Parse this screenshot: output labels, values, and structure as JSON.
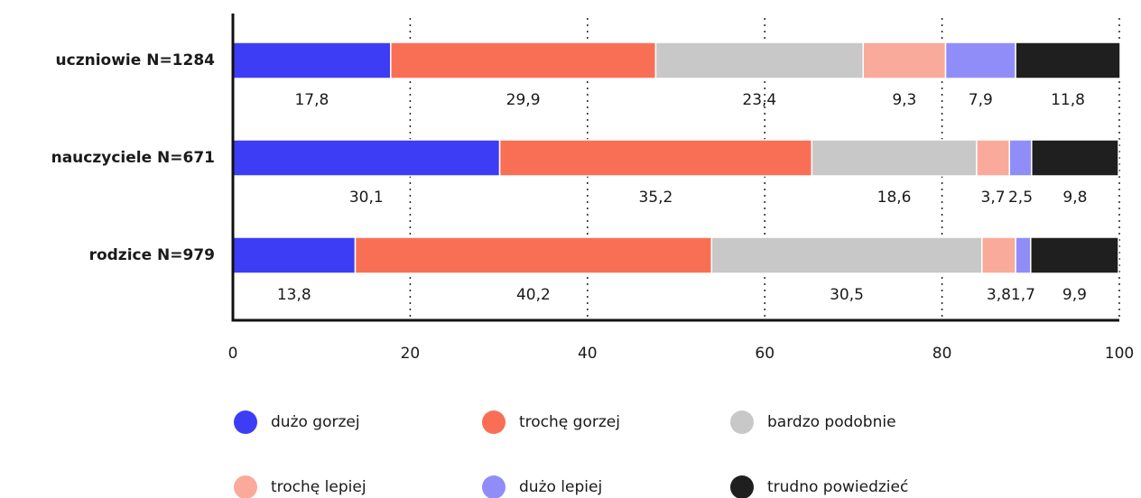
{
  "chart_data": {
    "type": "stacked-bar-horizontal",
    "categories": [
      "uczniowie N=1284",
      "nauczyciele N=671",
      "rodzice N=979"
    ],
    "series": [
      {
        "name": "dużo gorzej",
        "color": "#3d3df5",
        "values": [
          17.8,
          30.1,
          13.8
        ],
        "value_labels": [
          "17,8",
          "30,1",
          "13,8"
        ]
      },
      {
        "name": "trochę gorzej",
        "color": "#f96f56",
        "values": [
          29.9,
          35.2,
          40.2
        ],
        "value_labels": [
          "29,9",
          "35,2",
          "40,2"
        ]
      },
      {
        "name": "bardzo podobnie",
        "color": "#c8c8c8",
        "values": [
          23.4,
          18.6,
          30.5
        ],
        "value_labels": [
          "23,4",
          "18,6",
          "30,5"
        ]
      },
      {
        "name": "trochę lepiej",
        "color": "#f9aa9b",
        "values": [
          9.3,
          3.7,
          3.8
        ],
        "value_labels": [
          "9,3",
          "3,7",
          "3,8"
        ]
      },
      {
        "name": "dużo lepiej",
        "color": "#908df9",
        "values": [
          7.9,
          2.5,
          1.7
        ],
        "value_labels": [
          "7,9",
          "2,5",
          "1,7"
        ]
      },
      {
        "name": "trudno powiedzieć",
        "color": "#1f1f1f",
        "values": [
          11.8,
          9.8,
          9.9
        ],
        "value_labels": [
          "11,8",
          "9,8",
          "9,9"
        ]
      }
    ],
    "xlim": [
      0,
      100
    ],
    "xticks": [
      0,
      20,
      40,
      60,
      80,
      100
    ],
    "grid": true
  }
}
